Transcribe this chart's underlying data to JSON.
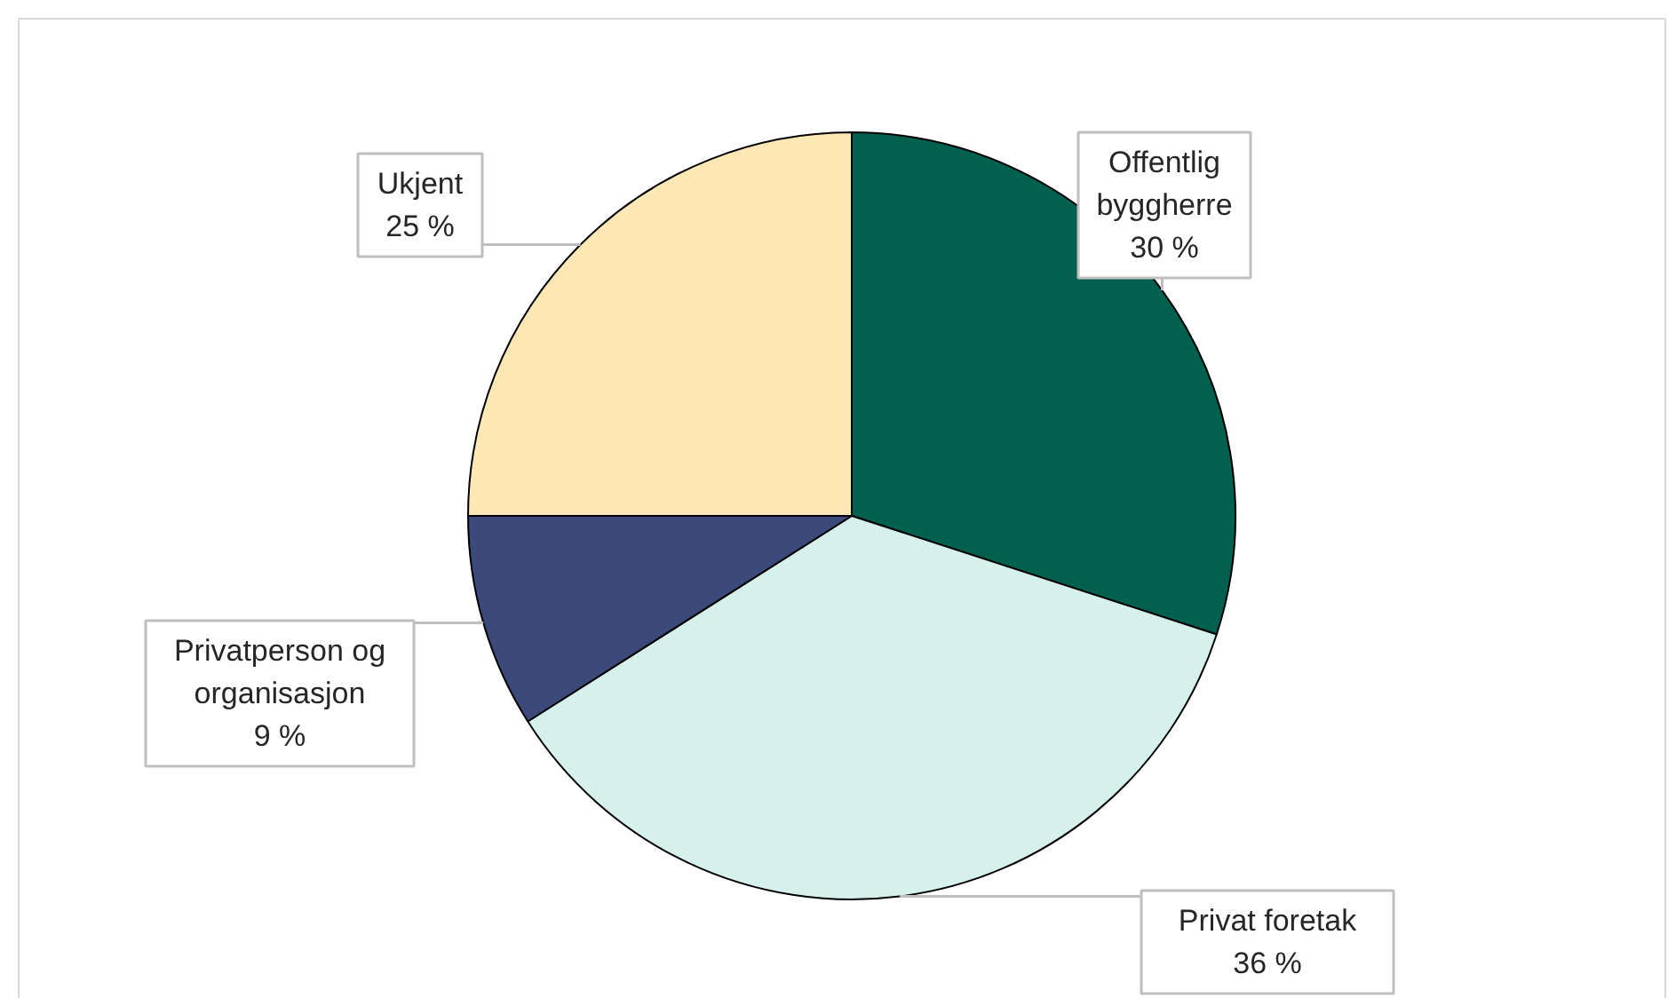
{
  "chart_data": {
    "type": "pie",
    "categories": [
      "Offentlig byggherre",
      "Privat foretak",
      "Privatperson og organisasjon",
      "Ukjent"
    ],
    "values": [
      30,
      36,
      9,
      25
    ],
    "value_labels": [
      "30 %",
      "36 %",
      "9 %",
      "25 %"
    ],
    "colors": [
      "#02604f",
      "#d6f0ec",
      "#3b4a7a",
      "#fde8b5"
    ]
  }
}
